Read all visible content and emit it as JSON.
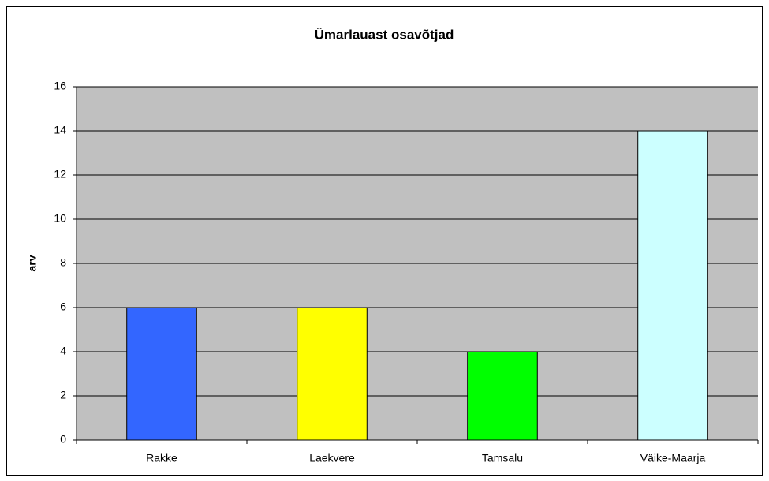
{
  "chart_data": {
    "type": "bar",
    "title": "Ümarlauast osavõtjad",
    "y_label": "arv",
    "categories": [
      "Rakke",
      "Laekvere",
      "Tamsalu",
      "Väike-Maarja"
    ],
    "values": [
      6,
      6,
      4,
      14
    ],
    "colors": [
      "#3366ff",
      "#ffff00",
      "#00ff00",
      "#ccffff"
    ],
    "ylim": [
      0,
      16
    ],
    "yticks": [
      0,
      2,
      4,
      6,
      8,
      10,
      12,
      14,
      16
    ],
    "grid": true
  }
}
